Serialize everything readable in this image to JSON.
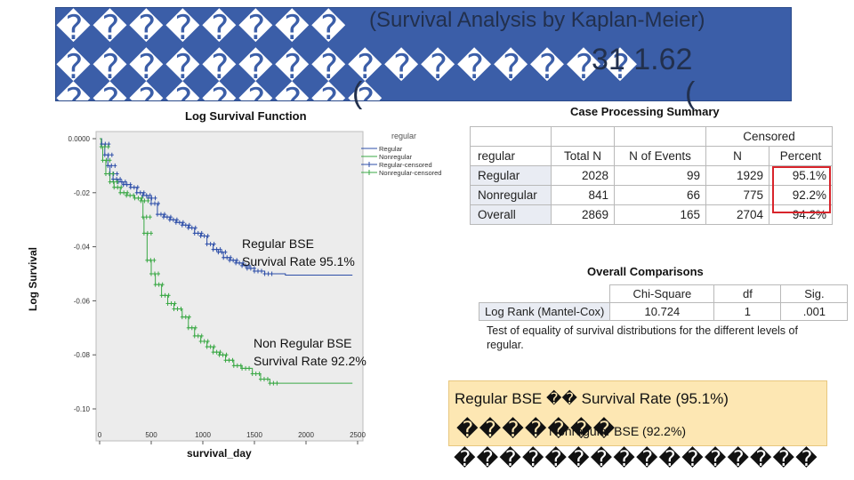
{
  "slide": {
    "title_row1": "��������",
    "title_subtitle": "(Survival Analysis by Kaplan-Meier)",
    "title_row2": "����������������",
    "title_number": "31 1.62",
    "title_row3": "���������",
    "title_paren_left": "(",
    "title_paren_right": "("
  },
  "chart_data": {
    "type": "line",
    "title": "Log Survival Function",
    "xlabel": "survival_day",
    "ylabel": "Log Survival",
    "xlim": [
      0,
      2500
    ],
    "ylim": [
      -0.1,
      0.0
    ],
    "x_ticks": [
      "0",
      "500",
      "1000",
      "1500",
      "2000",
      "2500"
    ],
    "y_ticks": [
      "0.0000",
      "-0.02",
      "-0.04",
      "-0.06",
      "-0.08",
      "-0.10"
    ],
    "legend_title": "regular",
    "legend": [
      "Regular",
      "Nonregular",
      "Regular-censored",
      "Nonregular-censored"
    ],
    "series": [
      {
        "name": "Regular",
        "color": "#2d4ea8",
        "x": [
          0,
          20,
          50,
          80,
          100,
          130,
          180,
          230,
          300,
          360,
          420,
          470,
          500,
          560,
          620,
          680,
          740,
          800,
          860,
          920,
          980,
          1040,
          1100,
          1150,
          1200,
          1260,
          1320,
          1380,
          1430,
          1500,
          1600,
          1800,
          2000,
          2200,
          2450
        ],
        "y": [
          0.0,
          -0.002,
          -0.006,
          -0.01,
          -0.013,
          -0.015,
          -0.016,
          -0.017,
          -0.018,
          -0.02,
          -0.021,
          -0.022,
          -0.024,
          -0.028,
          -0.029,
          -0.03,
          -0.031,
          -0.032,
          -0.033,
          -0.035,
          -0.036,
          -0.039,
          -0.041,
          -0.042,
          -0.044,
          -0.045,
          -0.046,
          -0.047,
          -0.048,
          -0.049,
          -0.05,
          -0.0505,
          -0.0505,
          -0.0505,
          -0.0505
        ]
      },
      {
        "name": "Nonregular",
        "color": "#3aa845",
        "x": [
          0,
          15,
          30,
          60,
          100,
          140,
          200,
          260,
          340,
          400,
          420,
          430,
          460,
          500,
          540,
          600,
          660,
          720,
          800,
          860,
          920,
          980,
          1040,
          1100,
          1160,
          1220,
          1300,
          1380,
          1480,
          1560,
          1650,
          1800,
          2000,
          2200,
          2450
        ],
        "y": [
          0.0,
          -0.003,
          -0.008,
          -0.013,
          -0.016,
          -0.018,
          -0.02,
          -0.021,
          -0.022,
          -0.023,
          -0.029,
          -0.035,
          -0.045,
          -0.05,
          -0.054,
          -0.058,
          -0.061,
          -0.063,
          -0.066,
          -0.07,
          -0.073,
          -0.075,
          -0.077,
          -0.079,
          -0.08,
          -0.082,
          -0.084,
          -0.085,
          -0.087,
          -0.089,
          -0.0905,
          -0.0905,
          -0.0905,
          -0.0905,
          -0.0905
        ]
      }
    ]
  },
  "annotations": {
    "regular_line1": "Regular BSE",
    "regular_line2": "Survival Rate 95.1%",
    "nonregular_line1": "Non Regular BSE",
    "nonregular_line2": "Survival Rate 92.2%"
  },
  "case_processing": {
    "title": "Case Processing Summary",
    "group_header": "Censored",
    "row_header": "regular",
    "columns": [
      "Total N",
      "N of Events",
      "N",
      "Percent"
    ],
    "rows": [
      {
        "label": "Regular",
        "total": "2028",
        "events": "99",
        "n": "1929",
        "percent": "95.1%"
      },
      {
        "label": "Nonregular",
        "total": "841",
        "events": "66",
        "n": "775",
        "percent": "92.2%"
      },
      {
        "label": "Overall",
        "total": "2869",
        "events": "165",
        "n": "2704",
        "percent": "94.2%"
      }
    ],
    "highlight_color": "#d8242b"
  },
  "overall_comparisons": {
    "title": "Overall Comparisons",
    "columns": [
      "Chi-Square",
      "df",
      "Sig."
    ],
    "row_label": "Log Rank (Mantel-Cox)",
    "chi_square": "10.724",
    "df": "1",
    "sig": ".001",
    "note": "Test of equality of survival distributions for the different levels of regular."
  },
  "callout": {
    "line1_a": "Regular BSE",
    "line1_b": "��",
    "line1_c": "Survival Rate (95.1%)",
    "line2_a": "�������",
    "line2_b": "Nonregular BSE (92.2%)",
    "line3": "����������������"
  }
}
